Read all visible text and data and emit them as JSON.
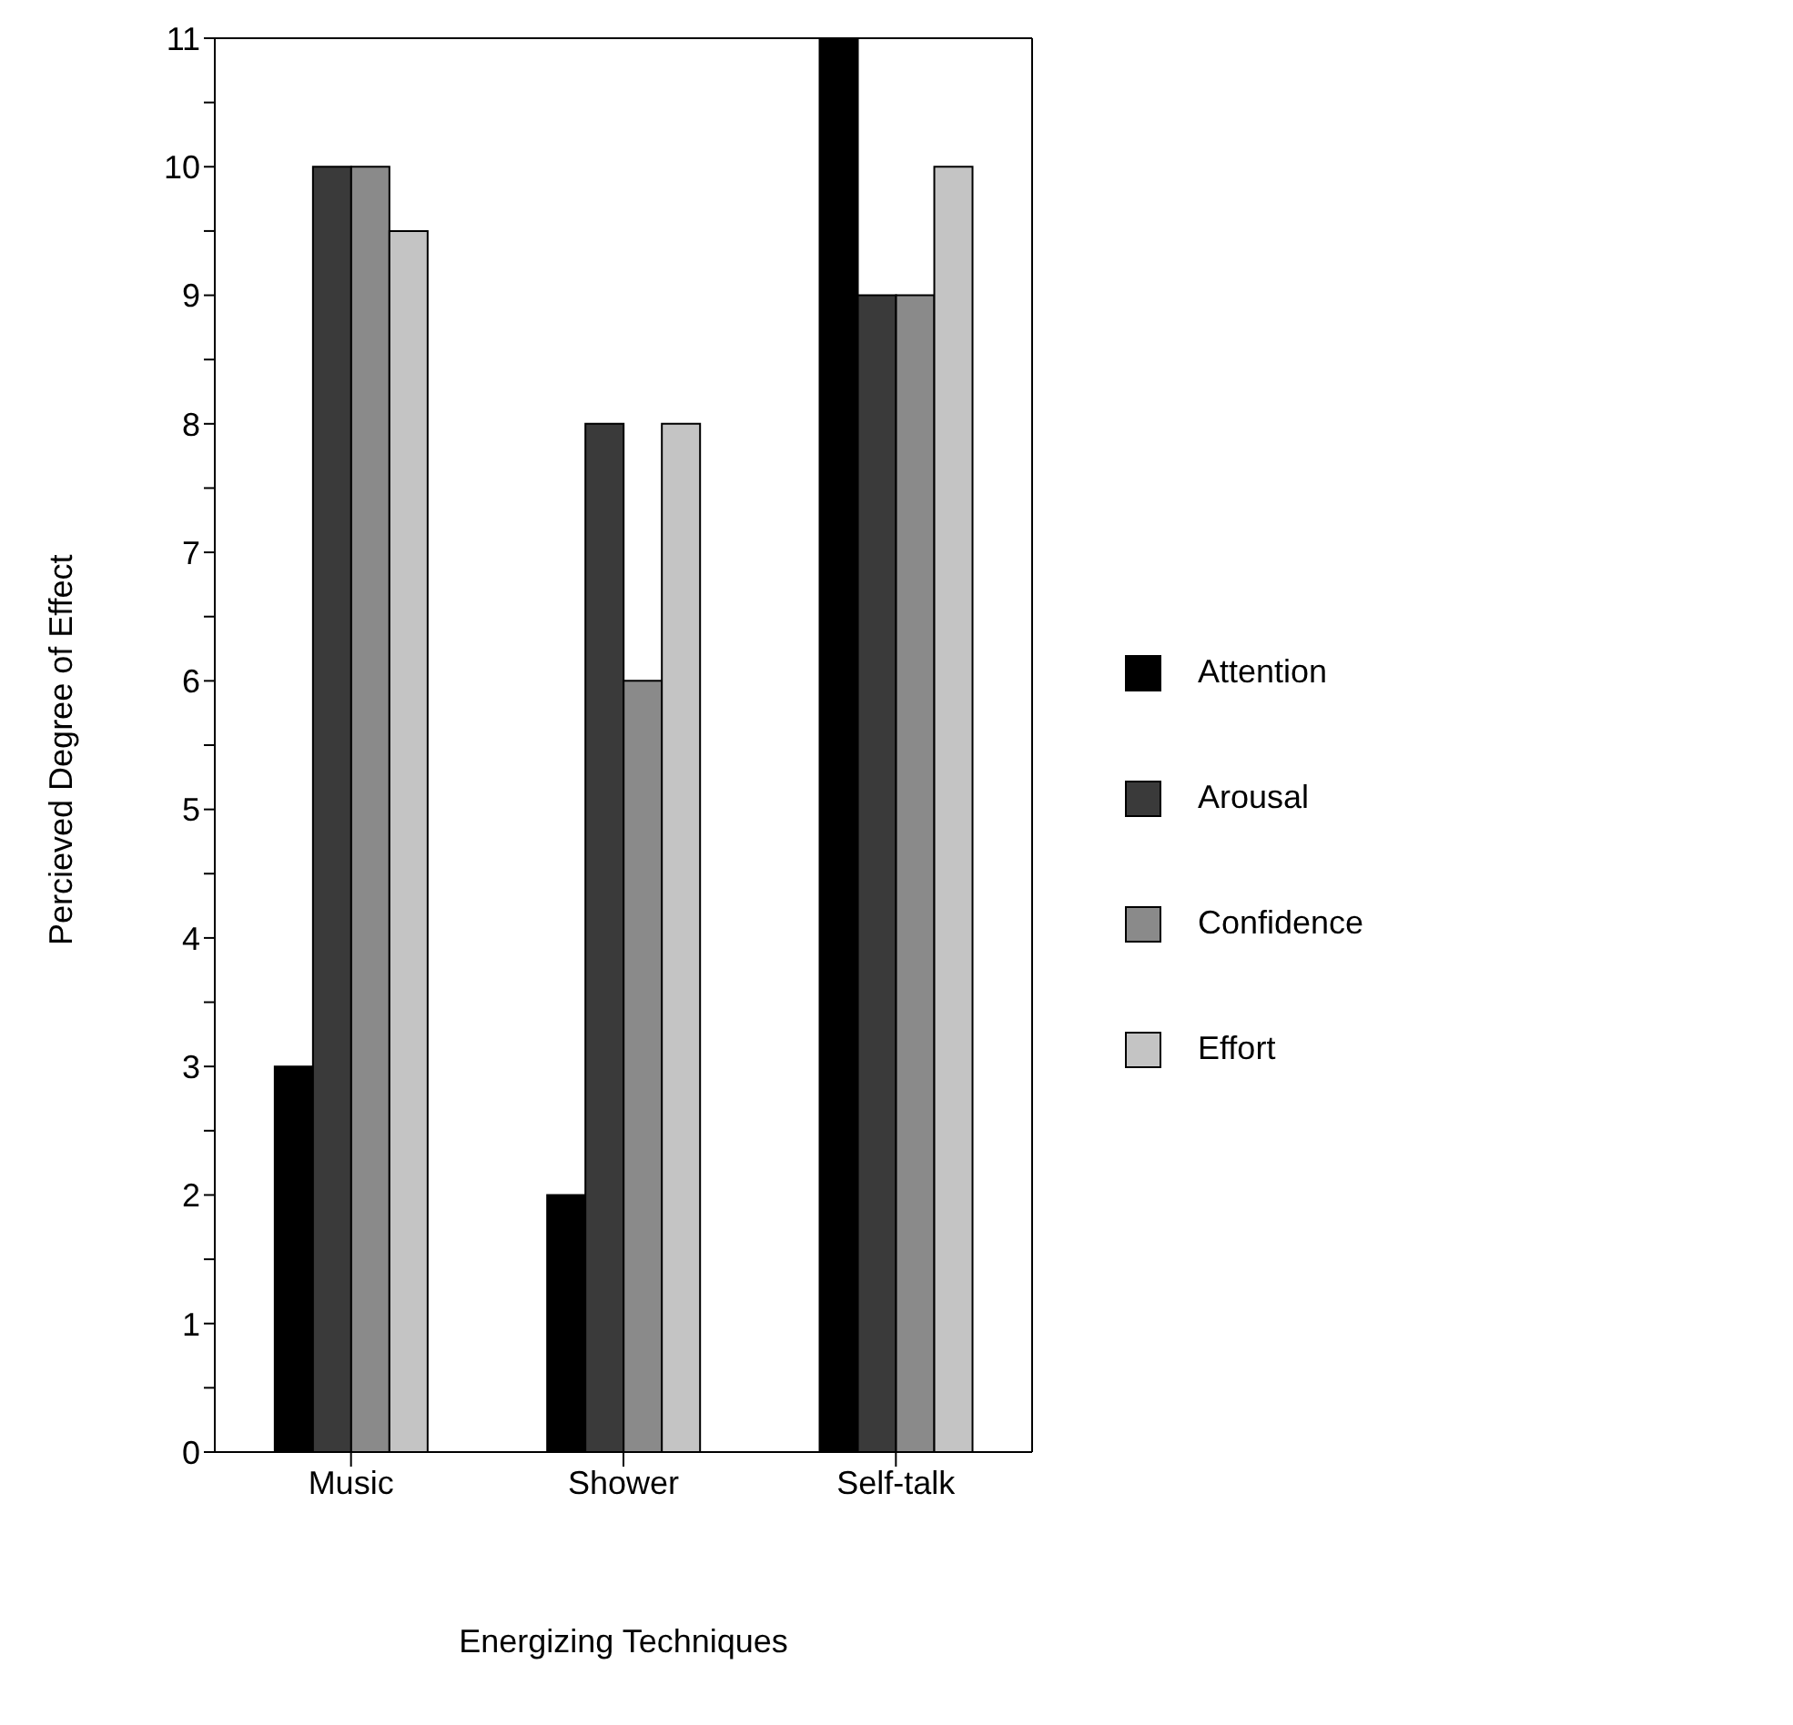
{
  "chart_data": {
    "type": "bar",
    "xlabel": "Energizing Techniques",
    "ylabel": "Percieved Degree of Effect",
    "categories": [
      "Music",
      "Shower",
      "Self-talk"
    ],
    "series": [
      {
        "name": "Attention",
        "color": "#000000",
        "values": [
          3,
          2,
          11
        ]
      },
      {
        "name": "Arousal",
        "color": "#3a3a3a",
        "values": [
          10,
          8,
          9
        ]
      },
      {
        "name": "Confidence",
        "color": "#8a8a8a",
        "values": [
          10,
          6,
          9
        ]
      },
      {
        "name": "Effort",
        "color": "#c4c4c4",
        "values": [
          9.5,
          8,
          10
        ]
      }
    ],
    "ylim": [
      0,
      11
    ],
    "yticks": [
      0,
      {
        "value": 0.5,
        "label": null
      },
      1,
      {
        "value": 1.5,
        "label": null
      },
      2,
      {
        "value": 2.5,
        "label": null
      },
      3,
      {
        "value": 3.5,
        "label": null
      },
      4,
      {
        "value": 4.5,
        "label": null
      },
      5,
      {
        "value": 5.5,
        "label": null
      },
      6,
      {
        "value": 6.5,
        "label": null
      },
      7,
      {
        "value": 7.5,
        "label": null
      },
      8,
      {
        "value": 8.5,
        "label": null
      },
      9,
      {
        "value": 9.5,
        "label": null
      },
      10,
      {
        "value": 10.5,
        "label": null
      },
      11
    ],
    "grid": false,
    "legend": "right"
  }
}
